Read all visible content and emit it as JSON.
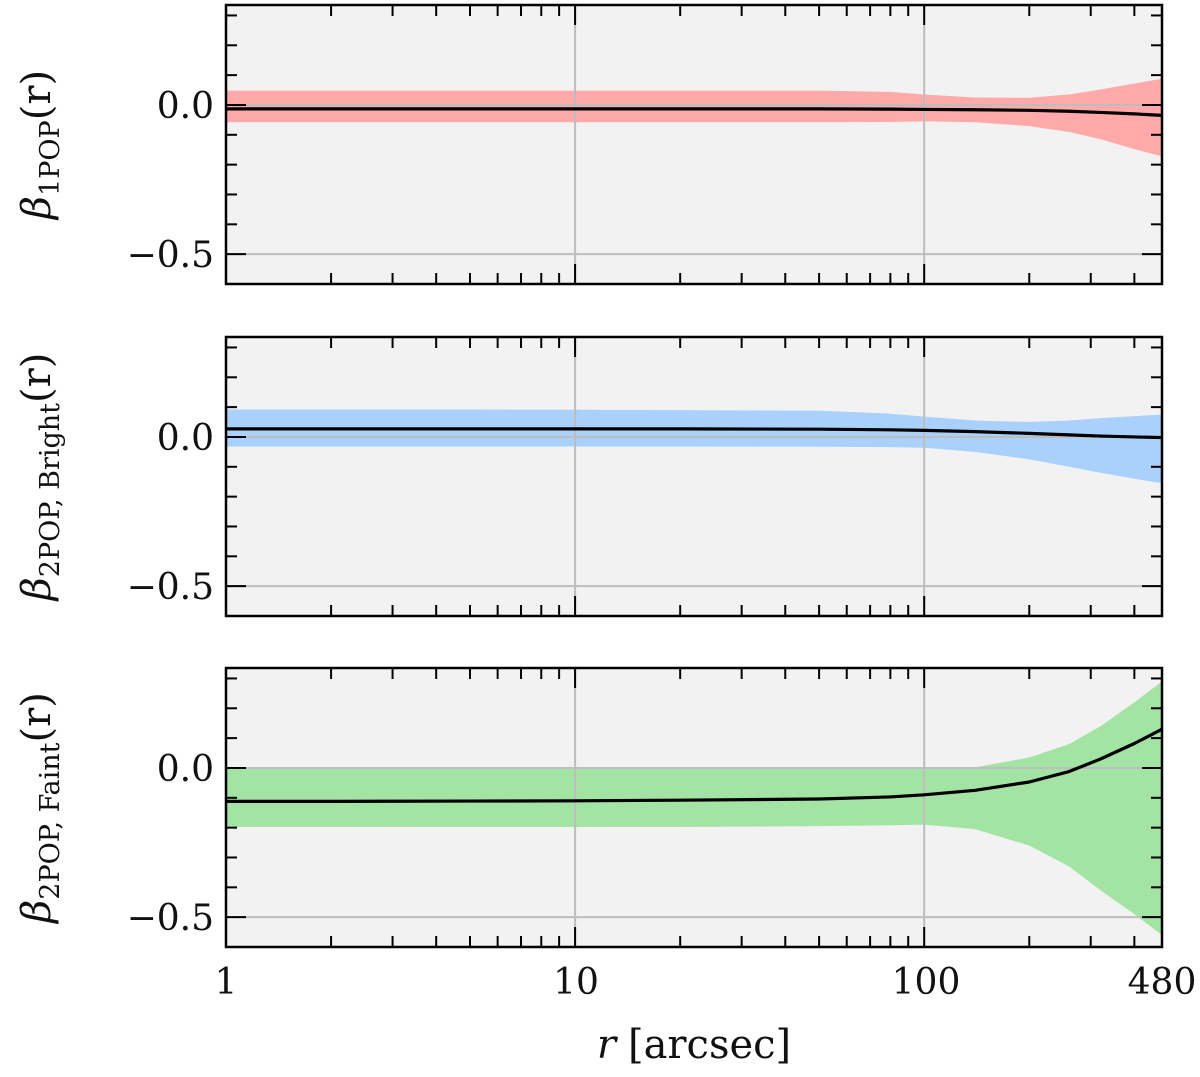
{
  "chart_data": [
    {
      "type": "area",
      "ylabel": {
        "main": "β",
        "sub": "1POP",
        "arg": "(r)"
      },
      "ylim": [
        -0.6,
        0.335
      ],
      "yticks": [
        {
          "v": 0.0,
          "label": "0.0"
        },
        {
          "v": -0.5,
          "label": "−0.5"
        }
      ],
      "band_color": "#ffa9aa",
      "line_color": "#000000",
      "x": [
        1,
        2,
        5,
        10,
        20,
        50,
        80,
        100,
        140,
        200,
        260,
        320,
        400,
        480
      ],
      "median": [
        -0.013,
        -0.013,
        -0.013,
        -0.013,
        -0.013,
        -0.013,
        -0.014,
        -0.015,
        -0.016,
        -0.018,
        -0.021,
        -0.025,
        -0.03,
        -0.035
      ],
      "upper": [
        0.048,
        0.048,
        0.048,
        0.048,
        0.048,
        0.048,
        0.044,
        0.035,
        0.025,
        0.024,
        0.035,
        0.052,
        0.072,
        0.088
      ],
      "lower": [
        -0.058,
        -0.058,
        -0.058,
        -0.058,
        -0.058,
        -0.058,
        -0.057,
        -0.055,
        -0.058,
        -0.071,
        -0.09,
        -0.115,
        -0.148,
        -0.172
      ]
    },
    {
      "type": "area",
      "ylabel": {
        "main": "β",
        "sub": "2POP, Bright",
        "arg": "(r)"
      },
      "ylim": [
        -0.6,
        0.335
      ],
      "yticks": [
        {
          "v": 0.0,
          "label": "0.0"
        },
        {
          "v": -0.5,
          "label": "−0.5"
        }
      ],
      "band_color": "#a9d1fc",
      "line_color": "#000000",
      "x": [
        1,
        2,
        5,
        10,
        20,
        50,
        80,
        100,
        140,
        200,
        260,
        320,
        400,
        480
      ],
      "median": [
        0.027,
        0.027,
        0.027,
        0.027,
        0.027,
        0.026,
        0.024,
        0.022,
        0.018,
        0.012,
        0.007,
        0.003,
        0.0,
        -0.002
      ],
      "upper": [
        0.092,
        0.092,
        0.092,
        0.091,
        0.09,
        0.088,
        0.078,
        0.068,
        0.055,
        0.05,
        0.055,
        0.063,
        0.07,
        0.075
      ],
      "lower": [
        -0.032,
        -0.032,
        -0.032,
        -0.032,
        -0.032,
        -0.033,
        -0.034,
        -0.036,
        -0.05,
        -0.075,
        -0.1,
        -0.12,
        -0.14,
        -0.155
      ]
    },
    {
      "type": "area",
      "ylabel": {
        "main": "β",
        "sub": "2POP, Faint",
        "arg": "(r)"
      },
      "ylim": [
        -0.6,
        0.335
      ],
      "yticks": [
        {
          "v": 0.0,
          "label": "0.0"
        },
        {
          "v": -0.5,
          "label": "−0.5"
        }
      ],
      "band_color": "#a3e3a4",
      "line_color": "#000000",
      "x": [
        1,
        2,
        5,
        10,
        20,
        50,
        80,
        100,
        140,
        200,
        260,
        320,
        400,
        480
      ],
      "median": [
        -0.112,
        -0.112,
        -0.111,
        -0.11,
        -0.108,
        -0.104,
        -0.097,
        -0.09,
        -0.075,
        -0.047,
        -0.012,
        0.03,
        0.082,
        0.13
      ],
      "upper": [
        -0.002,
        -0.002,
        -0.002,
        -0.002,
        -0.002,
        -0.002,
        -0.002,
        -0.002,
        0.002,
        0.035,
        0.08,
        0.14,
        0.22,
        0.29
      ],
      "lower": [
        -0.198,
        -0.198,
        -0.198,
        -0.198,
        -0.198,
        -0.195,
        -0.192,
        -0.19,
        -0.205,
        -0.26,
        -0.33,
        -0.41,
        -0.49,
        -0.56
      ]
    }
  ],
  "xaxis": {
    "scale": "log",
    "xlim": [
      1,
      480
    ],
    "ticks": [
      {
        "v": 1,
        "label": "1"
      },
      {
        "v": 10,
        "label": "10"
      },
      {
        "v": 100,
        "label": "100"
      },
      {
        "v": 480,
        "label": "480"
      }
    ],
    "label": {
      "var": "r",
      "unit": "[arcsec]"
    },
    "grid": true
  },
  "style": {
    "panel_bg": "#f2f2f2",
    "grid_color": "#bdbdbd",
    "axis_color": "#000000"
  }
}
